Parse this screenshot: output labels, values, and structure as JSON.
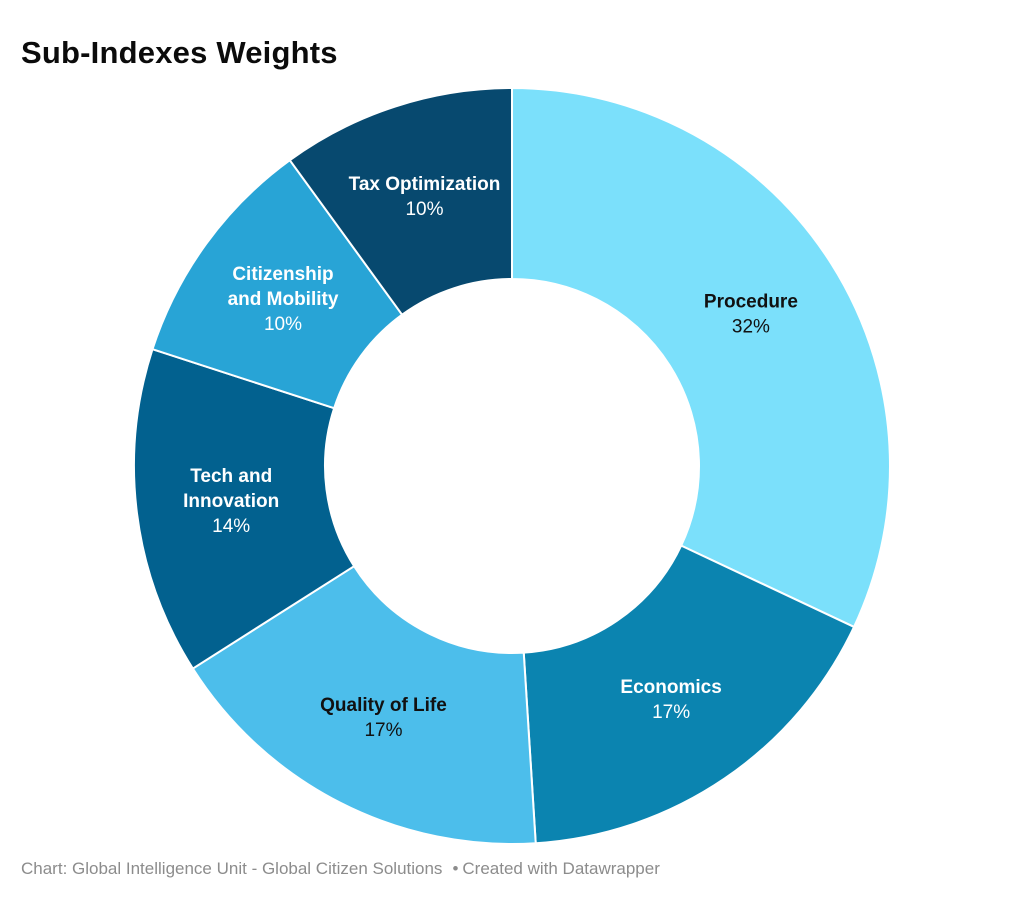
{
  "title": "Sub-Indexes Weights",
  "footer": {
    "source": "Chart: Global Intelligence Unit - Global Citizen Solutions",
    "separator": "•",
    "credit": "Created with Datawrapper"
  },
  "chart_data": {
    "type": "pie",
    "subtype": "donut",
    "title": "Sub-Indexes Weights",
    "unit": "%",
    "direction": "clockwise",
    "start_angle_deg": 0,
    "inner_radius_ratio": 0.495,
    "slice_border_color": "#ffffff",
    "segments": [
      {
        "label": "Procedure",
        "value": 32,
        "pct_label": "32%",
        "color": "#7BE0FB",
        "text_color": "#111111",
        "label_lines": [
          "Procedure"
        ]
      },
      {
        "label": "Economics",
        "value": 17,
        "pct_label": "17%",
        "color": "#0B84B0",
        "text_color": "#ffffff",
        "label_lines": [
          "Economics"
        ]
      },
      {
        "label": "Quality of Life",
        "value": 17,
        "pct_label": "17%",
        "color": "#4CBEEB",
        "text_color": "#111111",
        "label_lines": [
          "Quality of Life"
        ]
      },
      {
        "label": "Tech and Innovation",
        "value": 14,
        "pct_label": "14%",
        "color": "#02618F",
        "text_color": "#ffffff",
        "label_lines": [
          "Tech and",
          "Innovation"
        ]
      },
      {
        "label": "Citizenship and Mobility",
        "value": 10,
        "pct_label": "10%",
        "color": "#28A4D6",
        "text_color": "#ffffff",
        "label_lines": [
          "Citizenship",
          "and Mobility"
        ]
      },
      {
        "label": "Tax Optimization",
        "value": 10,
        "pct_label": "10%",
        "color": "#07496F",
        "text_color": "#ffffff",
        "label_lines": [
          "Tax Optimization"
        ]
      }
    ]
  }
}
